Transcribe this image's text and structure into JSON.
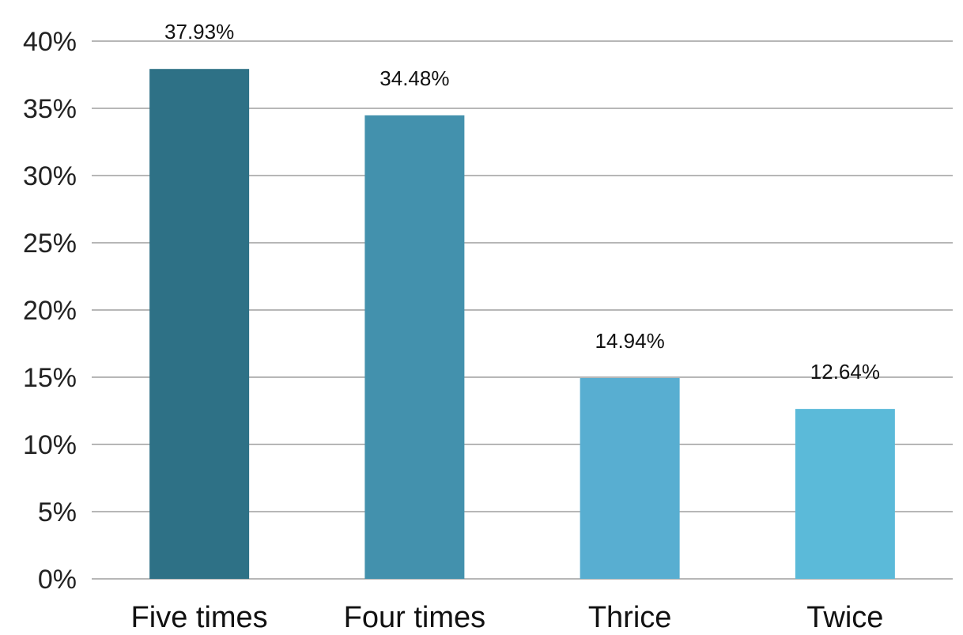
{
  "chart_data": {
    "type": "bar",
    "title": "",
    "xlabel": "",
    "ylabel": "",
    "categories": [
      "Five times",
      "Four times",
      "Thrice",
      "Twice"
    ],
    "values": [
      37.93,
      34.48,
      14.94,
      12.64
    ],
    "data_labels": [
      "37.93%",
      "34.48%",
      "14.94%",
      "12.64%"
    ],
    "ylim": [
      0,
      40
    ],
    "y_ticks": [
      0,
      5,
      10,
      15,
      20,
      25,
      30,
      35,
      40
    ],
    "y_tick_labels": [
      "0%",
      "5%",
      "10%",
      "15%",
      "20%",
      "25%",
      "30%",
      "35%",
      "40%"
    ],
    "grid": true,
    "legend": "none",
    "colors": [
      "#2e7186",
      "#4391ad",
      "#58aed1",
      "#5bbad9"
    ]
  }
}
